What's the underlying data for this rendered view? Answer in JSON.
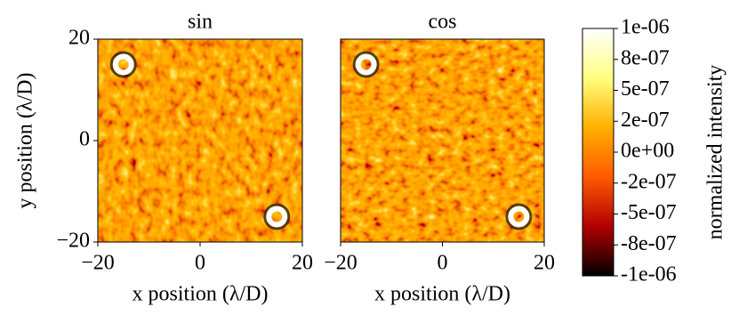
{
  "chart_data": [
    {
      "type": "heatmap",
      "title": "sin",
      "xlabel": "x position (λ/D)",
      "ylabel": "y position (λ/D)",
      "xlim": [
        -20,
        20
      ],
      "xticks": [
        {
          "value": -20,
          "label": "−20"
        },
        0,
        20
      ],
      "ylim": [
        -20,
        20
      ],
      "yticks": [
        {
          "value": -20,
          "label": "−20"
        },
        0,
        20
      ]
    },
    {
      "type": "heatmap",
      "title": "cos",
      "xlabel": "x position (λ/D)",
      "xlim": [
        -20,
        20
      ],
      "xticks": [
        {
          "value": -20,
          "label": "−20"
        },
        0,
        20
      ],
      "ylim": [
        -20,
        20
      ]
    }
  ],
  "colorbar": {
    "label": "normalized intensity",
    "lim": [
      -1e-06,
      1e-06
    ],
    "colors": [
      "#000000",
      "#b30000",
      "#ff5a00",
      "#ffb000",
      "#ffff80",
      "#ffffff"
    ],
    "ticks": [
      {
        "value": 1e-06,
        "label": "1e-06"
      },
      {
        "value": 7.5e-07,
        "label": "8e-07"
      },
      {
        "value": 5e-07,
        "label": "5e-07"
      },
      {
        "value": 2.5e-07,
        "label": "2e-07"
      },
      {
        "value": 0,
        "label": "0e+00"
      },
      {
        "value": -2.5e-07,
        "label": "-2e-07"
      },
      {
        "value": -5e-07,
        "label": "-5e-07"
      },
      {
        "value": -7.5e-07,
        "label": "-8e-07"
      },
      {
        "value": -1e-06,
        "label": "-1e-06"
      }
    ]
  }
}
